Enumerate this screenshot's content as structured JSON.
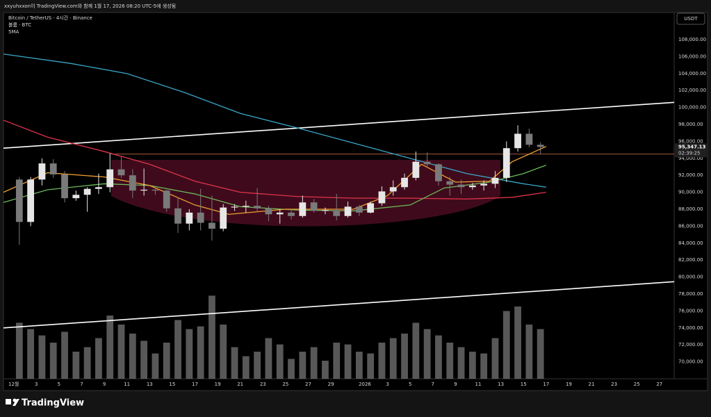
{
  "header": "xxyuhxxon이 TradingView.com와 함께 1월 17, 2026 08:20 UTC-5에 생성됨",
  "chart_data": {
    "type": "candlestick",
    "title": "Bitcoin / TetherUS · 4시간 · Binance",
    "legend_lines": [
      "볼륨 · BTC",
      "5MA"
    ],
    "currency_button": "USDT",
    "brand": "TradingView",
    "up_color": "#e6e6e6",
    "down_color": "#7a7a7a",
    "x": [
      0,
      1,
      2,
      3,
      4,
      5,
      6,
      7,
      8,
      9,
      10,
      11,
      12,
      13,
      14,
      15,
      16,
      17,
      18,
      19,
      20,
      21,
      22,
      23,
      24,
      25,
      26,
      27,
      28,
      29,
      30,
      31,
      32,
      33,
      34,
      35,
      36,
      37,
      38,
      39,
      40,
      41,
      42,
      43,
      44,
      45,
      46
    ],
    "open": [
      91500,
      86500,
      91500,
      93400,
      92100,
      89300,
      89700,
      90400,
      90600,
      92700,
      92000,
      90200,
      90300,
      90200,
      88100,
      86300,
      87600,
      86400,
      85700,
      88200,
      88300,
      88400,
      88100,
      87400,
      87600,
      87200,
      88800,
      87800,
      87900,
      87200,
      88300,
      87600,
      88700,
      90100,
      90600,
      91700,
      93600,
      93300,
      91300,
      90900,
      90600,
      90800,
      91000,
      91700,
      95200,
      96900,
      95600
    ],
    "high": [
      91800,
      91800,
      94000,
      93900,
      92500,
      90200,
      90600,
      92200,
      94600,
      94200,
      92700,
      92800,
      90600,
      90300,
      89400,
      88000,
      90400,
      89600,
      88600,
      88600,
      89000,
      90500,
      88400,
      88000,
      88000,
      89600,
      89200,
      88200,
      89800,
      88900,
      88500,
      88900,
      90700,
      91400,
      92200,
      94800,
      94700,
      93400,
      91800,
      91500,
      91100,
      91400,
      92500,
      96000,
      97900,
      97500,
      95900
    ],
    "low": [
      83800,
      86000,
      90800,
      91700,
      88800,
      89000,
      87700,
      89800,
      90000,
      91700,
      89300,
      89600,
      89700,
      87700,
      85200,
      85500,
      85500,
      84300,
      85400,
      87800,
      87600,
      87700,
      86600,
      86300,
      86800,
      87000,
      87600,
      87400,
      86700,
      87000,
      87200,
      87500,
      88400,
      89600,
      90300,
      91400,
      92900,
      90800,
      89600,
      89800,
      90300,
      90200,
      90500,
      91200,
      94800,
      95300,
      94500
    ],
    "close": [
      86500,
      91500,
      93400,
      92100,
      89300,
      89700,
      90400,
      90600,
      92700,
      92000,
      90200,
      90300,
      90200,
      88100,
      86300,
      87600,
      86400,
      85700,
      88200,
      88300,
      88400,
      88100,
      87400,
      87600,
      87200,
      88800,
      87800,
      87900,
      87200,
      88300,
      87600,
      88700,
      90100,
      90600,
      91700,
      93600,
      93300,
      91300,
      90900,
      90600,
      90800,
      91000,
      91700,
      95200,
      96900,
      95600,
      95347.13
    ],
    "volume": [
      62,
      55,
      48,
      40,
      52,
      30,
      35,
      45,
      70,
      60,
      50,
      42,
      28,
      40,
      65,
      55,
      58,
      92,
      60,
      35,
      25,
      30,
      45,
      38,
      22,
      30,
      35,
      20,
      40,
      38,
      30,
      28,
      40,
      45,
      50,
      62,
      55,
      48,
      40,
      35,
      30,
      28,
      45,
      75,
      80,
      60,
      55
    ],
    "volume_color": "#6e6e6e",
    "volume_lim": [
      0,
      100
    ],
    "moving_averages": [
      {
        "color": "#3aa6c9",
        "x": [
          -0.9,
          5,
          10,
          15,
          20,
          25,
          30,
          35,
          40,
          45,
          47
        ],
        "values": [
          106300,
          105200,
          104000,
          101800,
          99300,
          97600,
          95800,
          94000,
          92200,
          91000,
          90600
        ]
      },
      {
        "color": "#e0344a",
        "x": [
          -0.9,
          3,
          8,
          12,
          16,
          20,
          25,
          30,
          35,
          40,
          44,
          47
        ],
        "values": [
          98500,
          96500,
          94800,
          93300,
          91300,
          90000,
          89500,
          89300,
          89300,
          89200,
          89400,
          90000
        ]
      },
      {
        "color": "#6dbb5a",
        "x": [
          -0.9,
          3,
          8,
          12,
          16,
          20,
          25,
          30,
          35,
          38,
          42,
          45,
          47
        ],
        "values": [
          88800,
          90300,
          91000,
          90800,
          89800,
          88300,
          87900,
          87800,
          88500,
          90500,
          91200,
          92200,
          93200
        ]
      },
      {
        "color": "#f0a030",
        "x": [
          -0.9,
          3,
          8,
          12,
          16,
          19,
          24,
          30,
          33,
          36,
          39,
          42,
          44,
          47
        ],
        "values": [
          90000,
          92300,
          91800,
          90800,
          88500,
          87400,
          88000,
          88000,
          89600,
          93300,
          91200,
          91300,
          93600,
          95400
        ]
      }
    ],
    "trend_lines": [
      {
        "color": "#ffffff",
        "x": [
          -0.9,
          58.3
        ],
        "values": [
          95200,
          100600
        ]
      },
      {
        "color": "#ffffff",
        "x": [
          -0.9,
          58.3
        ],
        "values": [
          74000,
          79450
        ]
      }
    ],
    "hline": {
      "color": "#e07a50",
      "x": 8.6,
      "value": 94500
    },
    "last_price": {
      "value": 95347.13,
      "label": "95,347.13"
    },
    "countdown": "02:39:25",
    "xlim": [
      -0.9,
      58.3
    ],
    "ylim": [
      68000,
      111200
    ],
    "xticks": [
      {
        "value": 0,
        "label": "12월"
      },
      {
        "value": 2,
        "label": "3"
      },
      {
        "value": 4,
        "label": "5"
      },
      {
        "value": 6,
        "label": "7"
      },
      {
        "value": 8,
        "label": "9"
      },
      {
        "value": 10,
        "label": "11"
      },
      {
        "value": 12,
        "label": "13"
      },
      {
        "value": 14,
        "label": "15"
      },
      {
        "value": 16,
        "label": "17"
      },
      {
        "value": 18,
        "label": "19"
      },
      {
        "value": 20,
        "label": "21"
      },
      {
        "value": 22,
        "label": "23"
      },
      {
        "value": 24,
        "label": "25"
      },
      {
        "value": 26,
        "label": "27"
      },
      {
        "value": 28,
        "label": "29"
      },
      {
        "value": 31,
        "label": "2026"
      },
      {
        "value": 33,
        "label": "3"
      },
      {
        "value": 35,
        "label": "5"
      },
      {
        "value": 37,
        "label": "7"
      },
      {
        "value": 39,
        "label": "9"
      },
      {
        "value": 41,
        "label": "11"
      },
      {
        "value": 43,
        "label": "13"
      },
      {
        "value": 45,
        "label": "15"
      },
      {
        "value": 47,
        "label": "17"
      },
      {
        "value": 49,
        "label": "19"
      },
      {
        "value": 51,
        "label": "21"
      },
      {
        "value": 53,
        "label": "23"
      },
      {
        "value": 55,
        "label": "25"
      },
      {
        "value": 57,
        "label": "27"
      }
    ],
    "yticks": [
      {
        "value": 70000,
        "label": "70,000.00"
      },
      {
        "value": 72000,
        "label": "72,000.00"
      },
      {
        "value": 74000,
        "label": "74,000.00"
      },
      {
        "value": 76000,
        "label": "76,000.00"
      },
      {
        "value": 78000,
        "label": "78,000.00"
      },
      {
        "value": 80000,
        "label": "80,000.00"
      },
      {
        "value": 82000,
        "label": "82,000.00"
      },
      {
        "value": 84000,
        "label": "84,000.00"
      },
      {
        "value": 86000,
        "label": "86,000.00"
      },
      {
        "value": 88000,
        "label": "88,000.00"
      },
      {
        "value": 90000,
        "label": "90,000.00"
      },
      {
        "value": 92000,
        "label": "92,000.00"
      },
      {
        "value": 94000,
        "label": "94,000.00"
      },
      {
        "value": 96000,
        "label": "96,000.00"
      },
      {
        "value": 98000,
        "label": "98,000.00"
      },
      {
        "value": 100000,
        "label": "100,000.00"
      },
      {
        "value": 102000,
        "label": "102,000.00"
      },
      {
        "value": 104000,
        "label": "104,000.00"
      },
      {
        "value": 106000,
        "label": "106,000.00"
      },
      {
        "value": 108000,
        "label": "108,000.00"
      }
    ],
    "grid": false
  }
}
